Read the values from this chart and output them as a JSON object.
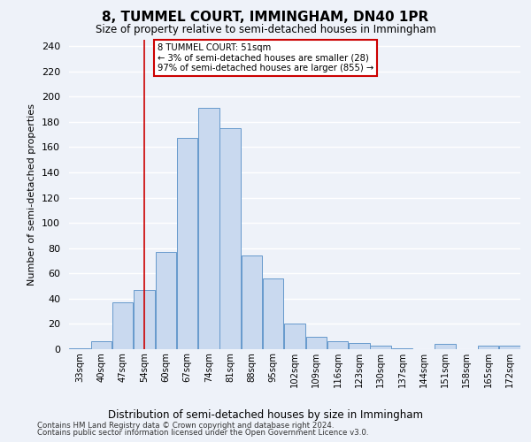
{
  "title": "8, TUMMEL COURT, IMMINGHAM, DN40 1PR",
  "subtitle": "Size of property relative to semi-detached houses in Immingham",
  "xlabel": "Distribution of semi-detached houses by size in Immingham",
  "ylabel": "Number of semi-detached properties",
  "bar_labels": [
    "33sqm",
    "40sqm",
    "47sqm",
    "54sqm",
    "60sqm",
    "67sqm",
    "74sqm",
    "81sqm",
    "88sqm",
    "95sqm",
    "102sqm",
    "109sqm",
    "116sqm",
    "123sqm",
    "130sqm",
    "137sqm",
    "144sqm",
    "151sqm",
    "158sqm",
    "165sqm",
    "172sqm"
  ],
  "bar_heights": [
    1,
    6,
    37,
    47,
    77,
    167,
    191,
    175,
    74,
    56,
    20,
    10,
    6,
    5,
    3,
    1,
    0,
    4,
    0,
    3,
    3
  ],
  "bar_color": "#c9d9ef",
  "bar_edge_color": "#6699cc",
  "property_line_x": 3,
  "annotation_text": "8 TUMMEL COURT: 51sqm\n← 3% of semi-detached houses are smaller (28)\n97% of semi-detached houses are larger (855) →",
  "annotation_box_color": "white",
  "annotation_box_edge_color": "#cc0000",
  "vline_color": "#cc0000",
  "ylim": [
    0,
    245
  ],
  "yticks": [
    0,
    20,
    40,
    60,
    80,
    100,
    120,
    140,
    160,
    180,
    200,
    220,
    240
  ],
  "footnote1": "Contains HM Land Registry data © Crown copyright and database right 2024.",
  "footnote2": "Contains public sector information licensed under the Open Government Licence v3.0.",
  "bg_color": "#eef2f9",
  "grid_color": "white"
}
